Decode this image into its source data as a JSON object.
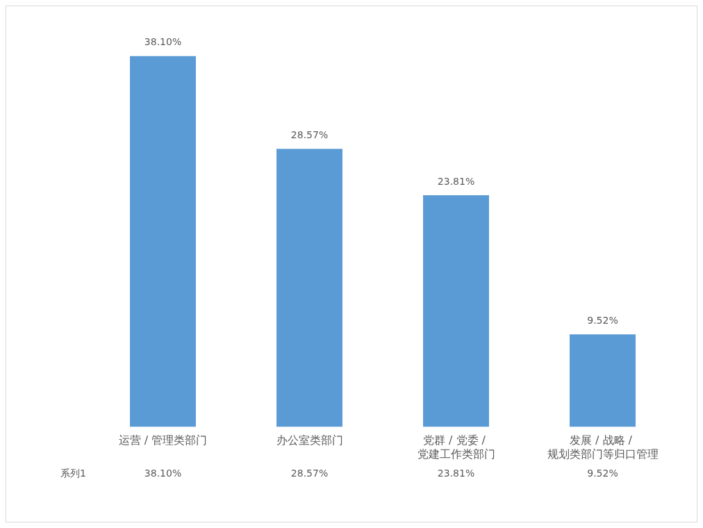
{
  "chart_data": {
    "type": "bar",
    "categories": [
      "运营 / 管理类部门",
      "办公室类部门",
      "党群 / 党委 / 党建工作类部门",
      "发展 / 战略 / 规划类部门等归口管理"
    ],
    "series": [
      {
        "name": "系列1",
        "color": "#5b9bd5",
        "values": [
          38.1,
          28.57,
          23.81,
          9.52
        ],
        "value_labels": [
          "38.10%",
          "28.57%",
          "23.81%",
          "9.52%"
        ]
      }
    ],
    "grid": false,
    "legend": false
  }
}
